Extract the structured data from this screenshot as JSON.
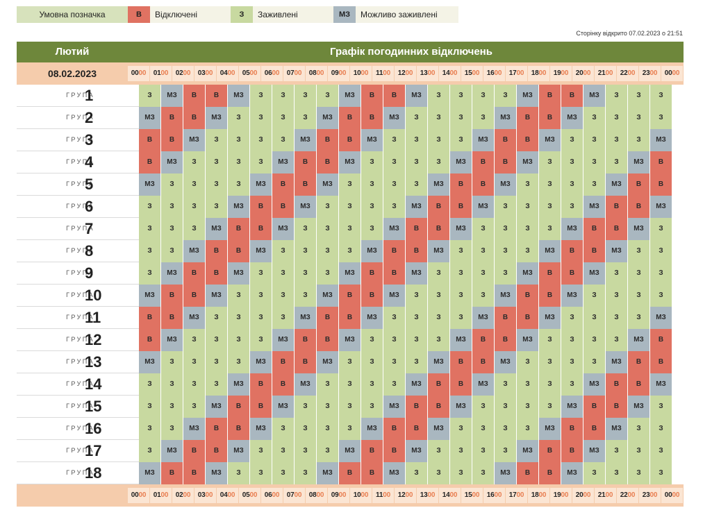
{
  "legend": {
    "title": "Умовна позначка",
    "items": [
      {
        "code": "В",
        "label": "Відключені",
        "color": "#e07262"
      },
      {
        "code": "З",
        "label": "Заживлені",
        "color": "#c8d9a0"
      },
      {
        "code": "МЗ",
        "label": "Можливо заживлені",
        "color": "#a9b7c0"
      }
    ]
  },
  "opened_text": "Сторінку відкрито 07.02.2023 о 21:51",
  "header": {
    "month": "Лютий",
    "title": "Графік погодинних відключень",
    "date": "08.02.2023",
    "color": "#6e873b"
  },
  "hours": [
    "00:00",
    "01:00",
    "02:00",
    "03:00",
    "04:00",
    "05:00",
    "06:00",
    "07:00",
    "08:00",
    "09:00",
    "10:00",
    "11:00",
    "12:00",
    "13:00",
    "14:00",
    "15:00",
    "16:00",
    "17:00",
    "18:00",
    "19:00",
    "20:00",
    "21:00",
    "22:00",
    "23:00",
    "00:00"
  ],
  "group_word": "ГРУПА",
  "groups": [
    {
      "number": "1",
      "statuses": [
        "З",
        "МЗ",
        "В",
        "В",
        "МЗ",
        "З",
        "З",
        "З",
        "З",
        "МЗ",
        "В",
        "В",
        "МЗ",
        "З",
        "З",
        "З",
        "З",
        "МЗ",
        "В",
        "В",
        "МЗ",
        "З",
        "З",
        "З"
      ]
    },
    {
      "number": "2",
      "statuses": [
        "МЗ",
        "В",
        "В",
        "МЗ",
        "З",
        "З",
        "З",
        "З",
        "МЗ",
        "В",
        "В",
        "МЗ",
        "З",
        "З",
        "З",
        "З",
        "МЗ",
        "В",
        "В",
        "МЗ",
        "З",
        "З",
        "З",
        "З"
      ]
    },
    {
      "number": "3",
      "statuses": [
        "В",
        "В",
        "МЗ",
        "З",
        "З",
        "З",
        "З",
        "МЗ",
        "В",
        "В",
        "МЗ",
        "З",
        "З",
        "З",
        "З",
        "МЗ",
        "В",
        "В",
        "МЗ",
        "З",
        "З",
        "З",
        "З",
        "МЗ"
      ]
    },
    {
      "number": "4",
      "statuses": [
        "В",
        "МЗ",
        "З",
        "З",
        "З",
        "З",
        "МЗ",
        "В",
        "В",
        "МЗ",
        "З",
        "З",
        "З",
        "З",
        "МЗ",
        "В",
        "В",
        "МЗ",
        "З",
        "З",
        "З",
        "З",
        "МЗ",
        "В"
      ]
    },
    {
      "number": "5",
      "statuses": [
        "МЗ",
        "З",
        "З",
        "З",
        "З",
        "МЗ",
        "В",
        "В",
        "МЗ",
        "З",
        "З",
        "З",
        "З",
        "МЗ",
        "В",
        "В",
        "МЗ",
        "З",
        "З",
        "З",
        "З",
        "МЗ",
        "В",
        "В"
      ]
    },
    {
      "number": "6",
      "statuses": [
        "З",
        "З",
        "З",
        "З",
        "МЗ",
        "В",
        "В",
        "МЗ",
        "З",
        "З",
        "З",
        "З",
        "МЗ",
        "В",
        "В",
        "МЗ",
        "З",
        "З",
        "З",
        "З",
        "МЗ",
        "В",
        "В",
        "МЗ"
      ]
    },
    {
      "number": "7",
      "statuses": [
        "З",
        "З",
        "З",
        "МЗ",
        "В",
        "В",
        "МЗ",
        "З",
        "З",
        "З",
        "З",
        "МЗ",
        "В",
        "В",
        "МЗ",
        "З",
        "З",
        "З",
        "З",
        "МЗ",
        "В",
        "В",
        "МЗ",
        "З"
      ]
    },
    {
      "number": "8",
      "statuses": [
        "З",
        "З",
        "МЗ",
        "В",
        "В",
        "МЗ",
        "З",
        "З",
        "З",
        "З",
        "МЗ",
        "В",
        "В",
        "МЗ",
        "З",
        "З",
        "З",
        "З",
        "МЗ",
        "В",
        "В",
        "МЗ",
        "З",
        "З"
      ]
    },
    {
      "number": "9",
      "statuses": [
        "З",
        "МЗ",
        "В",
        "В",
        "МЗ",
        "З",
        "З",
        "З",
        "З",
        "МЗ",
        "В",
        "В",
        "МЗ",
        "З",
        "З",
        "З",
        "З",
        "МЗ",
        "В",
        "В",
        "МЗ",
        "З",
        "З",
        "З"
      ]
    },
    {
      "number": "10",
      "statuses": [
        "МЗ",
        "В",
        "В",
        "МЗ",
        "З",
        "З",
        "З",
        "З",
        "МЗ",
        "В",
        "В",
        "МЗ",
        "З",
        "З",
        "З",
        "З",
        "МЗ",
        "В",
        "В",
        "МЗ",
        "З",
        "З",
        "З",
        "З"
      ]
    },
    {
      "number": "11",
      "statuses": [
        "В",
        "В",
        "МЗ",
        "З",
        "З",
        "З",
        "З",
        "МЗ",
        "В",
        "В",
        "МЗ",
        "З",
        "З",
        "З",
        "З",
        "МЗ",
        "В",
        "В",
        "МЗ",
        "З",
        "З",
        "З",
        "З",
        "МЗ"
      ]
    },
    {
      "number": "12",
      "statuses": [
        "В",
        "МЗ",
        "З",
        "З",
        "З",
        "З",
        "МЗ",
        "В",
        "В",
        "МЗ",
        "З",
        "З",
        "З",
        "З",
        "МЗ",
        "В",
        "В",
        "МЗ",
        "З",
        "З",
        "З",
        "З",
        "МЗ",
        "В"
      ]
    },
    {
      "number": "13",
      "statuses": [
        "МЗ",
        "З",
        "З",
        "З",
        "З",
        "МЗ",
        "В",
        "В",
        "МЗ",
        "З",
        "З",
        "З",
        "З",
        "МЗ",
        "В",
        "В",
        "МЗ",
        "З",
        "З",
        "З",
        "З",
        "МЗ",
        "В",
        "В"
      ]
    },
    {
      "number": "14",
      "statuses": [
        "З",
        "З",
        "З",
        "З",
        "МЗ",
        "В",
        "В",
        "МЗ",
        "З",
        "З",
        "З",
        "З",
        "МЗ",
        "В",
        "В",
        "МЗ",
        "З",
        "З",
        "З",
        "З",
        "МЗ",
        "В",
        "В",
        "МЗ"
      ]
    },
    {
      "number": "15",
      "statuses": [
        "З",
        "З",
        "З",
        "МЗ",
        "В",
        "В",
        "МЗ",
        "З",
        "З",
        "З",
        "З",
        "МЗ",
        "В",
        "В",
        "МЗ",
        "З",
        "З",
        "З",
        "З",
        "МЗ",
        "В",
        "В",
        "МЗ",
        "З"
      ]
    },
    {
      "number": "16",
      "statuses": [
        "З",
        "З",
        "МЗ",
        "В",
        "В",
        "МЗ",
        "З",
        "З",
        "З",
        "З",
        "МЗ",
        "В",
        "В",
        "МЗ",
        "З",
        "З",
        "З",
        "З",
        "МЗ",
        "В",
        "В",
        "МЗ",
        "З",
        "З"
      ]
    },
    {
      "number": "17",
      "statuses": [
        "З",
        "МЗ",
        "В",
        "В",
        "МЗ",
        "З",
        "З",
        "З",
        "З",
        "МЗ",
        "В",
        "В",
        "МЗ",
        "З",
        "З",
        "З",
        "З",
        "МЗ",
        "В",
        "В",
        "МЗ",
        "З",
        "З",
        "З"
      ]
    },
    {
      "number": "18",
      "statuses": [
        "МЗ",
        "В",
        "В",
        "МЗ",
        "З",
        "З",
        "З",
        "З",
        "МЗ",
        "В",
        "В",
        "МЗ",
        "З",
        "З",
        "З",
        "З",
        "МЗ",
        "В",
        "В",
        "МЗ",
        "З",
        "З",
        "З",
        "З"
      ]
    }
  ]
}
